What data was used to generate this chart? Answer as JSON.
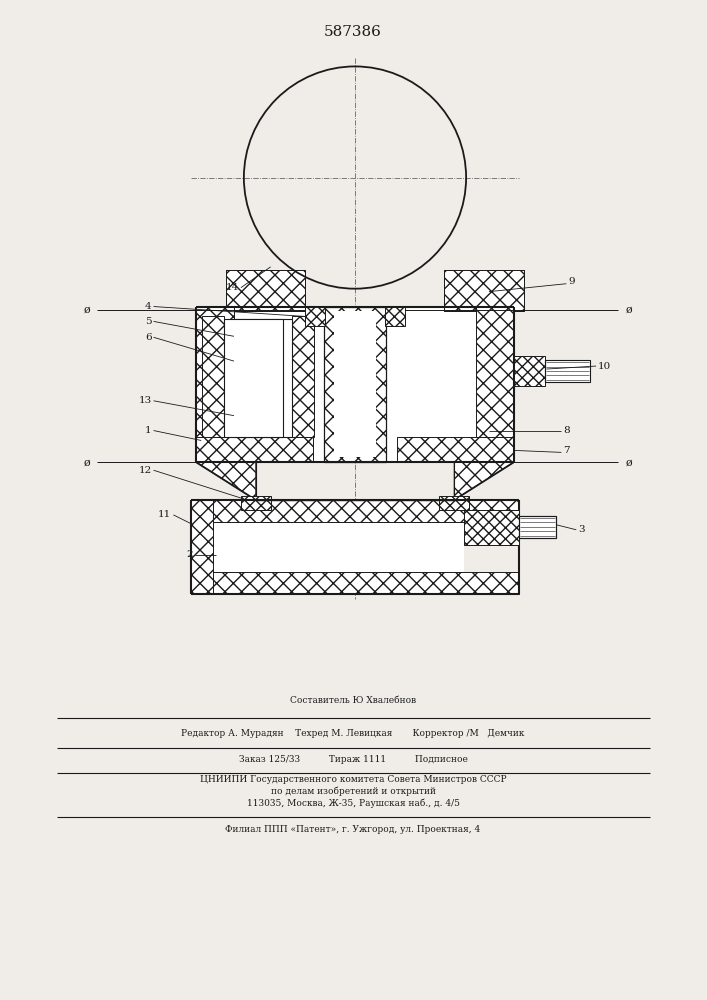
{
  "patent_number": "587386",
  "bg_color": "#f0ede8",
  "line_color": "#1a1a1a",
  "figsize": [
    7.07,
    10.0
  ],
  "dpi": 100,
  "footer_lines": [
    "Составитель Ю Хвалебнов",
    "Редактор А. Мурадян    Техред М. Левицкая       Корректор /М   Демчик",
    "Заказ 125/33          Тираж 1111          Подписное",
    "ЦНИИПИ Государственного комитета Совета Министров СССР",
    "по делам изобретений и открытий",
    "113035, Москва, Ж-35, Раушская наб., д. 4/5",
    "Филиал ППП «Патент», г. Ужгород, ул. Проектная, 4"
  ]
}
